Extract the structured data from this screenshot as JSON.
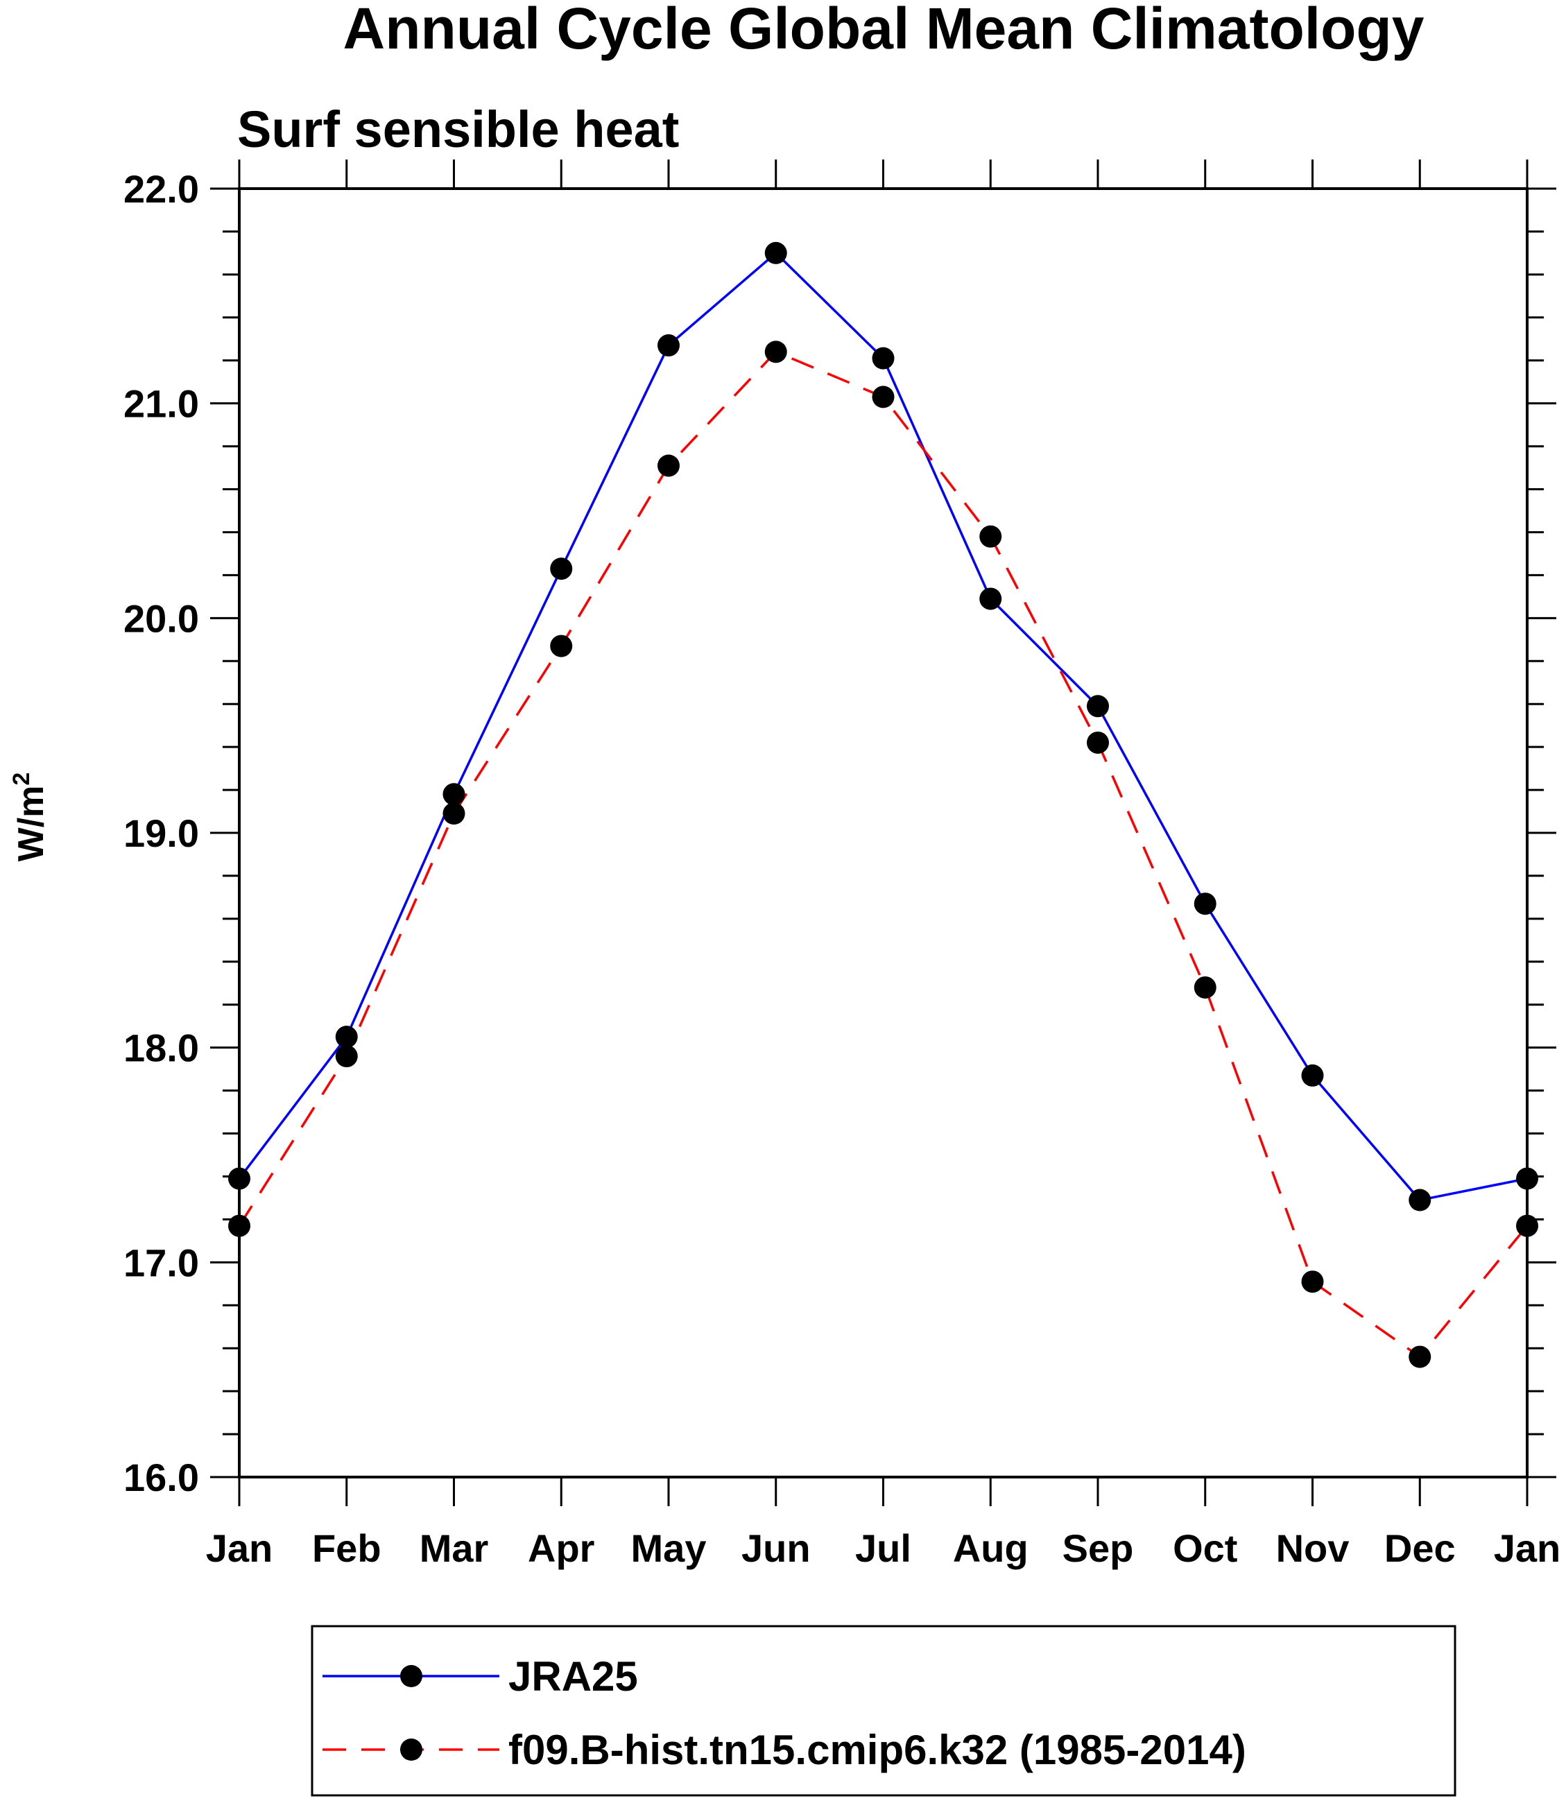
{
  "chart_data": {
    "type": "line",
    "title": "Annual Cycle Global Mean Climatology",
    "subtitle": "Surf sensible heat",
    "ylabel": "W/m",
    "ylabel_superscript": "2",
    "xlabel": "",
    "categories": [
      "Jan",
      "Feb",
      "Mar",
      "Apr",
      "May",
      "Jun",
      "Jul",
      "Aug",
      "Sep",
      "Oct",
      "Nov",
      "Dec",
      "Jan"
    ],
    "ylim": [
      16.0,
      22.0
    ],
    "yticks": [
      "16.0",
      "17.0",
      "18.0",
      "19.0",
      "20.0",
      "21.0",
      "22.0"
    ],
    "grid": false,
    "legend_position": "bottom",
    "series": [
      {
        "name": "JRA25",
        "color": "#0000ff",
        "dash": "solid",
        "values": [
          17.39,
          18.05,
          19.18,
          20.23,
          21.27,
          21.7,
          21.21,
          20.09,
          19.59,
          18.67,
          17.87,
          17.29,
          17.39
        ]
      },
      {
        "name": "f09.B-hist.tn15.cmip6.k32 (1985-2014)",
        "color": "#ff0000",
        "dash": "dashed",
        "values": [
          17.17,
          17.96,
          19.09,
          19.87,
          20.71,
          21.24,
          21.03,
          20.38,
          19.42,
          18.28,
          16.91,
          16.56,
          17.17
        ]
      }
    ],
    "marker_color": "#000000"
  }
}
